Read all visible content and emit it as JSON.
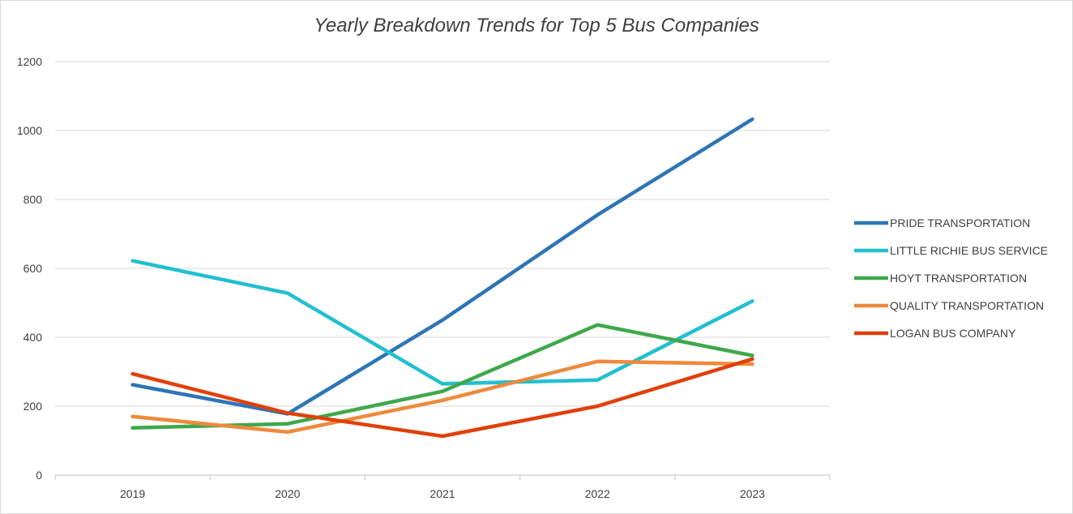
{
  "chart_data": {
    "type": "line",
    "title": "Yearly Breakdown Trends for Top 5 Bus Companies",
    "xlabel": "",
    "ylabel": "",
    "categories": [
      "2019",
      "2020",
      "2021",
      "2022",
      "2023"
    ],
    "ylim": [
      0,
      1200
    ],
    "yticks": [
      0,
      200,
      400,
      600,
      800,
      1000,
      1200
    ],
    "grid": true,
    "legend_position": "right",
    "series": [
      {
        "name": "PRIDE TRANSPORTATION",
        "color": "#2e75b6",
        "values": [
          262,
          178,
          450,
          755,
          1033
        ]
      },
      {
        "name": "LITTLE RICHIE BUS SERVICE",
        "color": "#22bfd0",
        "values": [
          622,
          528,
          265,
          276,
          505
        ]
      },
      {
        "name": "HOYT TRANSPORTATION",
        "color": "#3ea84a",
        "values": [
          137,
          149,
          243,
          436,
          347
        ]
      },
      {
        "name": "QUALITY TRANSPORTATION",
        "color": "#ed8a3c",
        "values": [
          170,
          125,
          217,
          330,
          322
        ]
      },
      {
        "name": "LOGAN BUS COMPANY",
        "color": "#e0400a",
        "values": [
          294,
          180,
          113,
          200,
          337
        ]
      }
    ]
  }
}
